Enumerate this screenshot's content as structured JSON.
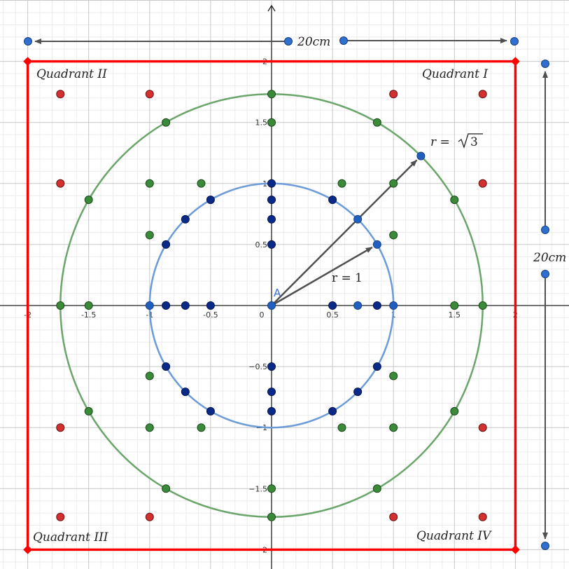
{
  "axis": {
    "x_ticks": [
      {
        "value": -2,
        "label": "-2"
      },
      {
        "value": -1.5,
        "label": "-1.5"
      },
      {
        "value": -1,
        "label": "-1"
      },
      {
        "value": -0.5,
        "label": "-0.5"
      },
      {
        "value": 0,
        "label": "0"
      },
      {
        "value": 0.5,
        "label": "0.5"
      },
      {
        "value": 1,
        "label": "1"
      },
      {
        "value": 1.5,
        "label": "1.5"
      },
      {
        "value": 2,
        "label": "2"
      }
    ],
    "y_ticks": [
      {
        "value": 2,
        "label": "2"
      },
      {
        "value": 1.5,
        "label": "1.5"
      },
      {
        "value": 1,
        "label": "1"
      },
      {
        "value": 0.5,
        "label": "0.5"
      },
      {
        "value": -0.5,
        "label": "−0.5"
      },
      {
        "value": -1,
        "label": "−1"
      },
      {
        "value": -1.5,
        "label": "−1.5"
      },
      {
        "value": -2,
        "label": "−2"
      }
    ]
  },
  "quadrant_labels": {
    "q1": "Quadrant I",
    "q2": "Quadrant II",
    "q3": "Quadrant III",
    "q4": "Quadrant IV"
  },
  "dimension_labels": {
    "width": "20cm",
    "height": "20cm"
  },
  "vector_labels": {
    "r_sqrt3_prefix": "r = ",
    "r_sqrt3_radicand": "3",
    "r_one": "r = 1",
    "origin_point": "A"
  },
  "colors": {
    "square": "#ff0000",
    "outer_circle": "#6aa56a",
    "inner_circle": "#6b9bd8",
    "red_point": "#d33030",
    "green_point": "#3a8a3a",
    "blue_point": "#2060c0",
    "navy_point": "#0a2a8a",
    "arrow": "#505050"
  },
  "chart_data": {
    "type": "scatter",
    "xlim": [
      -2,
      2
    ],
    "ylim": [
      -2,
      2
    ],
    "grid": true,
    "square": {
      "x": [
        -2,
        2
      ],
      "y": [
        -2,
        2
      ]
    },
    "circles": [
      {
        "name": "r = 1",
        "center": [
          0,
          0
        ],
        "radius": 1,
        "color": "#6b9bd8"
      },
      {
        "name": "r = √3",
        "center": [
          0,
          0
        ],
        "radius": 1.732,
        "color": "#6aa56a"
      }
    ],
    "vectors": [
      {
        "from": [
          0,
          0
        ],
        "to": [
          1.225,
          1.225
        ],
        "label": "r = √3"
      },
      {
        "from": [
          0,
          0
        ],
        "to": [
          0.866,
          0.5
        ],
        "label": "r = 1"
      }
    ],
    "series": [
      {
        "color": "red",
        "points": [
          [
            -1.732,
            1.732
          ],
          [
            -1,
            1.732
          ],
          [
            1,
            1.732
          ],
          [
            1.732,
            1.732
          ],
          [
            -1.732,
            1
          ],
          [
            1.732,
            1
          ],
          [
            -1.732,
            -1
          ],
          [
            1.732,
            -1
          ],
          [
            -1.732,
            -1.732
          ],
          [
            -1,
            -1.732
          ],
          [
            1,
            -1.732
          ],
          [
            1.732,
            -1.732
          ]
        ]
      },
      {
        "color": "green",
        "points": [
          [
            0,
            1.732
          ],
          [
            0,
            1.5
          ],
          [
            -0.866,
            1.5
          ],
          [
            0.866,
            1.5
          ],
          [
            -1,
            1
          ],
          [
            -0.577,
            1
          ],
          [
            0.577,
            1
          ],
          [
            1,
            1
          ],
          [
            -1.5,
            0.866
          ],
          [
            1.5,
            0.866
          ],
          [
            -1,
            0.577
          ],
          [
            1,
            0.577
          ],
          [
            -1.732,
            0
          ],
          [
            -1.5,
            0
          ],
          [
            1.5,
            0
          ],
          [
            1.732,
            0
          ],
          [
            -1,
            -0.577
          ],
          [
            1,
            -0.577
          ],
          [
            -1.5,
            -0.866
          ],
          [
            1.5,
            -0.866
          ],
          [
            -1,
            -1
          ],
          [
            -0.577,
            -1
          ],
          [
            0.577,
            -1
          ],
          [
            1,
            -1
          ],
          [
            -0.866,
            -1.5
          ],
          [
            0.866,
            -1.5
          ],
          [
            0,
            -1.5
          ],
          [
            0,
            -1.732
          ]
        ]
      },
      {
        "color": "blue",
        "points": [
          [
            0,
            0
          ],
          [
            1.225,
            1.225
          ],
          [
            0.707,
            0.707
          ],
          [
            0.866,
            0.5
          ],
          [
            -1,
            0
          ],
          [
            0.707,
            0
          ],
          [
            1,
            0
          ]
        ]
      },
      {
        "color": "navy",
        "points": [
          [
            0,
            1
          ],
          [
            0,
            0.866
          ],
          [
            0,
            0.707
          ],
          [
            0,
            0.5
          ],
          [
            -0.5,
            0.866
          ],
          [
            0.5,
            0.866
          ],
          [
            -0.707,
            0.707
          ],
          [
            -0.866,
            0.5
          ],
          [
            -0.866,
            0
          ],
          [
            -0.707,
            0
          ],
          [
            -0.5,
            0
          ],
          [
            0.5,
            0
          ],
          [
            0.866,
            0
          ],
          [
            -0.866,
            -0.5
          ],
          [
            0.866,
            -0.5
          ],
          [
            -0.707,
            -0.707
          ],
          [
            0.707,
            -0.707
          ],
          [
            -0.5,
            -0.866
          ],
          [
            0.5,
            -0.866
          ],
          [
            0,
            -0.5
          ],
          [
            0,
            -0.707
          ],
          [
            0,
            -0.866
          ]
        ]
      }
    ]
  }
}
